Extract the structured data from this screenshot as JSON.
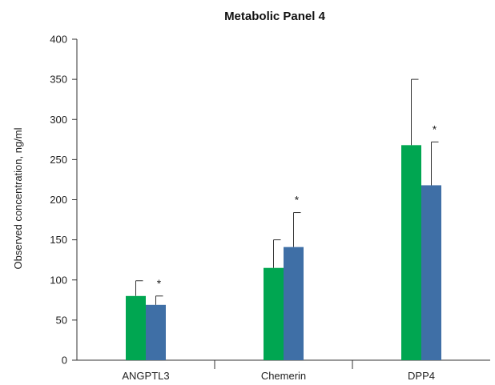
{
  "chart_data": {
    "type": "bar",
    "title": "Metabolic Panel 4",
    "xlabel": "",
    "ylabel": "Observed concentration, ng/ml",
    "categories": [
      "ANGPTL3",
      "Chemerin",
      "DPP4"
    ],
    "ylim": [
      0,
      400
    ],
    "yticks": [
      0,
      50,
      100,
      150,
      200,
      250,
      300,
      350,
      400
    ],
    "grid": false,
    "legend": "none",
    "series": [
      {
        "color": "#00a651",
        "values": [
          80,
          115,
          268
        ],
        "error_plus": [
          19,
          35,
          82
        ]
      },
      {
        "color": "#3f6fa6",
        "values": [
          69,
          141,
          218
        ],
        "error_plus": [
          11,
          43,
          54
        ]
      }
    ],
    "annotations": [
      {
        "category": "ANGPTL3",
        "series_index": 1,
        "text": "*"
      },
      {
        "category": "Chemerin",
        "series_index": 1,
        "text": "*"
      },
      {
        "category": "DPP4",
        "series_index": 1,
        "text": "*"
      }
    ]
  }
}
